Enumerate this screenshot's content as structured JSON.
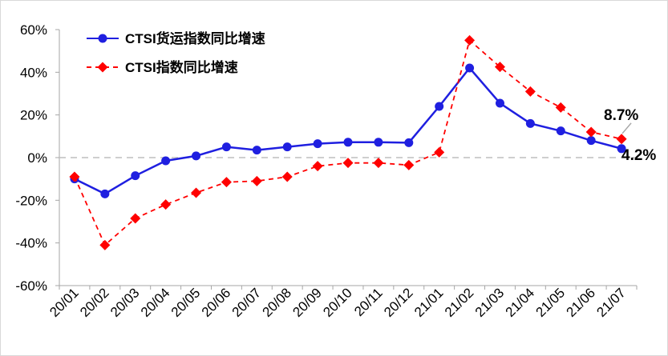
{
  "chart_data": {
    "type": "line",
    "categories": [
      "20/01",
      "20/02",
      "20/03",
      "20/04",
      "20/05",
      "20/06",
      "20/07",
      "20/08",
      "20/09",
      "20/10",
      "20/11",
      "20/12",
      "21/01",
      "21/02",
      "21/03",
      "21/04",
      "21/05",
      "21/06",
      "21/07"
    ],
    "ylim": [
      -60,
      60
    ],
    "yticks": [
      -60,
      -40,
      -20,
      0,
      20,
      40,
      60
    ],
    "ytick_labels": [
      "-60%",
      "-40%",
      "-20%",
      "0%",
      "20%",
      "40%",
      "60%"
    ],
    "zero_line": "dashed",
    "grid": false,
    "legend_position": "top-left",
    "series": [
      {
        "name": "CTSI货运指数同比增速",
        "color": "#1f1fe0",
        "line": "solid",
        "marker": "circle",
        "values": [
          -10,
          -17,
          -8.5,
          -1.5,
          0.8,
          5,
          3.5,
          5,
          6.5,
          7.2,
          7.2,
          7,
          24,
          42,
          25.5,
          16,
          12.5,
          8,
          4.2
        ]
      },
      {
        "name": "CTSI指数同比增速",
        "color": "#ff0000",
        "line": "dashed",
        "marker": "diamond",
        "values": [
          -9,
          -41,
          -28.5,
          -22,
          -16.5,
          -11.5,
          -11,
          -9,
          -4,
          -2.5,
          -2.5,
          -3.5,
          2.5,
          55,
          42.5,
          31,
          23.5,
          12,
          8.7
        ]
      }
    ],
    "annotations": [
      {
        "text": "8.7%",
        "series": 1,
        "index": 18
      },
      {
        "text": "4.2%",
        "series": 0,
        "index": 18
      }
    ]
  }
}
